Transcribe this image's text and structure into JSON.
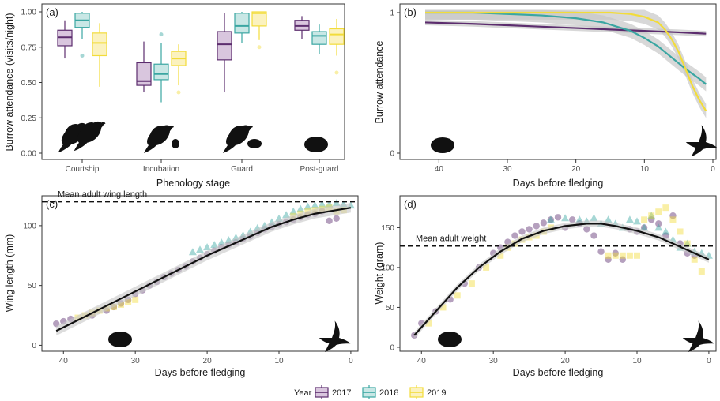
{
  "colors": {
    "y2017": "#5c2d6e",
    "y2018": "#3aa6a2",
    "y2019": "#f2dc3a",
    "fill2017": "#d9c6de",
    "fill2018": "#c8e7e5",
    "fill2019": "#fbf2bf",
    "fit": "#111111",
    "ribbon": "#c7c7c7"
  },
  "legend": {
    "title": "Year",
    "entries": [
      {
        "key": "y2017",
        "label": "2017"
      },
      {
        "key": "y2018",
        "label": "2018"
      },
      {
        "key": "y2019",
        "label": "2019"
      }
    ]
  },
  "icons": [
    "two-birds-courtship-icon",
    "bird-with-egg-icon",
    "bird-with-chick-icon",
    "chick-icon",
    "fledgling-flying-icon"
  ],
  "chart_data": [
    {
      "panel": "(a)",
      "type": "box",
      "xlabel": "Phenology stage",
      "ylabel": "Burrow attendance (visits/night)",
      "ylim": [
        0,
        1
      ],
      "yticks": [
        "0.00",
        "0.25",
        "0.50",
        "0.75",
        "1.00"
      ],
      "categories": [
        "Courtship",
        "Incubation",
        "Guard",
        "Post-guard"
      ],
      "series": [
        {
          "year": "2017",
          "boxes": [
            {
              "min": 0.67,
              "q1": 0.76,
              "median": 0.82,
              "q3": 0.87,
              "max": 0.94,
              "outliers": []
            },
            {
              "min": 0.43,
              "q1": 0.48,
              "median": 0.51,
              "q3": 0.64,
              "max": 0.79,
              "outliers": []
            },
            {
              "min": 0.43,
              "q1": 0.66,
              "median": 0.77,
              "q3": 0.86,
              "max": 0.99,
              "outliers": []
            },
            {
              "min": 0.81,
              "q1": 0.87,
              "median": 0.9,
              "q3": 0.94,
              "max": 0.97,
              "outliers": []
            }
          ]
        },
        {
          "year": "2018",
          "boxes": [
            {
              "min": 0.81,
              "q1": 0.89,
              "median": 0.94,
              "q3": 0.99,
              "max": 1.0,
              "outliers": [
                0.69
              ]
            },
            {
              "min": 0.36,
              "q1": 0.52,
              "median": 0.56,
              "q3": 0.63,
              "max": 0.78,
              "outliers": [
                0.84
              ]
            },
            {
              "min": 0.78,
              "q1": 0.85,
              "median": 0.9,
              "q3": 0.99,
              "max": 1.0,
              "outliers": []
            },
            {
              "min": 0.7,
              "q1": 0.77,
              "median": 0.83,
              "q3": 0.86,
              "max": 0.91,
              "outliers": []
            }
          ]
        },
        {
          "year": "2019",
          "boxes": [
            {
              "min": 0.47,
              "q1": 0.69,
              "median": 0.78,
              "q3": 0.85,
              "max": 0.92,
              "outliers": []
            },
            {
              "min": 0.48,
              "q1": 0.62,
              "median": 0.67,
              "q3": 0.72,
              "max": 0.77,
              "outliers": [
                0.43
              ]
            },
            {
              "min": 0.8,
              "q1": 0.9,
              "median": 0.99,
              "q3": 1.0,
              "max": 1.0,
              "outliers": [
                0.75
              ]
            },
            {
              "min": 0.69,
              "q1": 0.77,
              "median": 0.84,
              "q3": 0.88,
              "max": 0.95,
              "outliers": [
                0.57
              ]
            }
          ]
        }
      ]
    },
    {
      "panel": "(b)",
      "type": "line",
      "xlabel": "Days before fledging",
      "ylabel": "Burrow attendance",
      "xlim": [
        45,
        0
      ],
      "ylim": [
        0,
        1
      ],
      "xticks": [
        "40",
        "30",
        "20",
        "10",
        "0"
      ],
      "yticks": [
        "0",
        "1"
      ],
      "series": [
        {
          "year": "2017",
          "x": [
            42,
            35,
            30,
            25,
            20,
            15,
            10,
            5,
            1
          ],
          "y": [
            0.93,
            0.92,
            0.91,
            0.9,
            0.89,
            0.88,
            0.87,
            0.86,
            0.85
          ],
          "ribbon": 0.02
        },
        {
          "year": "2018",
          "x": [
            42,
            35,
            30,
            25,
            20,
            16,
            12,
            10,
            8,
            6,
            4,
            2,
            1
          ],
          "y": [
            1.0,
            1.0,
            0.99,
            0.98,
            0.96,
            0.93,
            0.87,
            0.82,
            0.76,
            0.68,
            0.6,
            0.53,
            0.49
          ],
          "ribbon": 0.05
        },
        {
          "year": "2019",
          "x": [
            42,
            30,
            20,
            15,
            12,
            10,
            8,
            7,
            6,
            5,
            4,
            3,
            2,
            1
          ],
          "y": [
            1.0,
            1.0,
            1.0,
            1.0,
            0.99,
            0.97,
            0.93,
            0.88,
            0.81,
            0.72,
            0.6,
            0.48,
            0.38,
            0.3
          ],
          "ribbon": 0.05
        }
      ]
    },
    {
      "panel": "(c)",
      "type": "scatter",
      "xlabel": "Days before fledging",
      "ylabel": "Wing length (mm)",
      "xlim": [
        43,
        -1
      ],
      "ylim": [
        -5,
        125
      ],
      "xticks": [
        "40",
        "30",
        "20",
        "10",
        "0"
      ],
      "yticks": [
        "0",
        "50",
        "100"
      ],
      "reference_line": {
        "y": 120,
        "label": "Mean adult wing length"
      },
      "series": [
        {
          "year": "2017",
          "x": [
            41,
            40,
            39,
            36,
            34,
            33,
            32,
            31,
            30,
            29,
            28,
            27,
            26,
            25,
            24,
            23,
            22,
            21,
            20,
            19,
            18,
            17,
            16,
            15,
            14,
            13,
            12,
            11,
            10,
            9,
            8,
            7,
            6,
            5,
            4,
            3,
            2
          ],
          "y": [
            18,
            20,
            22,
            25,
            29,
            32,
            35,
            38,
            43,
            46,
            50,
            53,
            57,
            60,
            63,
            66,
            70,
            73,
            76,
            79,
            82,
            84,
            86,
            89,
            91,
            94,
            97,
            99,
            101,
            103,
            105,
            107,
            109,
            110,
            112,
            104,
            106
          ]
        },
        {
          "year": "2018",
          "x": [
            22,
            21,
            20,
            19,
            18,
            17,
            16,
            15,
            14,
            13,
            12,
            11,
            10,
            9,
            8,
            7,
            6,
            5,
            4,
            3,
            2,
            1,
            0
          ],
          "y": [
            78,
            80,
            82,
            84,
            86,
            88,
            90,
            92,
            95,
            98,
            100,
            103,
            106,
            109,
            112,
            114,
            116,
            117,
            118,
            118,
            119,
            118,
            117
          ]
        },
        {
          "year": "2019",
          "x": [
            38,
            37,
            36,
            35,
            34,
            33,
            32,
            31,
            30,
            8,
            7,
            6,
            5,
            4,
            3,
            2,
            1
          ],
          "y": [
            23,
            25,
            27,
            29,
            31,
            32,
            34,
            36,
            38,
            108,
            110,
            112,
            113,
            114,
            115,
            112,
            113
          ]
        }
      ],
      "fit": {
        "x": [
          41,
          38,
          35,
          32,
          29,
          26,
          23,
          20,
          17,
          14,
          11,
          8,
          5,
          2,
          0
        ],
        "y": [
          12,
          21,
          30,
          39,
          48,
          57,
          66,
          75,
          83,
          91,
          99,
          105,
          110,
          113,
          115
        ]
      }
    },
    {
      "panel": "(d)",
      "type": "scatter",
      "xlabel": "Days before fledging",
      "ylabel": "Weight (gram)",
      "xlim": [
        43,
        -1
      ],
      "ylim": [
        -5,
        190
      ],
      "xticks": [
        "40",
        "30",
        "20",
        "10",
        "0"
      ],
      "yticks": [
        "0",
        "50",
        "100",
        "150"
      ],
      "reference_line": {
        "y": 127,
        "label": "Mean adult weight"
      },
      "series": [
        {
          "year": "2017",
          "x": [
            41,
            40,
            38,
            36,
            34,
            32,
            30,
            29,
            28,
            27,
            26,
            25,
            24,
            23,
            22,
            21,
            20,
            19,
            18,
            17,
            16,
            15,
            14,
            13,
            12,
            11,
            10,
            9,
            8,
            7,
            6,
            5,
            4,
            3,
            2
          ],
          "y": [
            15,
            30,
            45,
            60,
            80,
            100,
            118,
            125,
            132,
            140,
            145,
            148,
            152,
            156,
            160,
            163,
            150,
            160,
            155,
            148,
            140,
            120,
            110,
            118,
            110,
            148,
            145,
            150,
            160,
            155,
            140,
            165,
            130,
            118,
            115
          ]
        },
        {
          "year": "2018",
          "x": [
            22,
            20,
            18,
            17,
            16,
            15,
            14,
            13,
            12,
            11,
            10,
            9,
            8,
            7,
            6,
            5,
            4,
            3,
            2,
            1,
            0
          ],
          "y": [
            160,
            162,
            160,
            158,
            162,
            155,
            160,
            155,
            150,
            160,
            158,
            150,
            165,
            150,
            145,
            135,
            125,
            130,
            120,
            118,
            115
          ]
        },
        {
          "year": "2019",
          "x": [
            39,
            37,
            35,
            33,
            31,
            29,
            28,
            27,
            26,
            25,
            24,
            23,
            22,
            14,
            13,
            12,
            11,
            10,
            9,
            8,
            7,
            6,
            5,
            4,
            3,
            2,
            1
          ],
          "y": [
            30,
            50,
            65,
            80,
            100,
            115,
            125,
            130,
            135,
            138,
            140,
            145,
            150,
            115,
            115,
            115,
            115,
            115,
            160,
            165,
            170,
            175,
            160,
            145,
            130,
            110,
            95
          ]
        }
      ],
      "fit": {
        "x": [
          41,
          38,
          35,
          32,
          29,
          26,
          23,
          20,
          17,
          15,
          13,
          10,
          7,
          4,
          2,
          0
        ],
        "y": [
          15,
          45,
          75,
          100,
          120,
          136,
          146,
          152,
          155,
          155,
          152,
          146,
          138,
          126,
          118,
          110
        ]
      }
    }
  ]
}
